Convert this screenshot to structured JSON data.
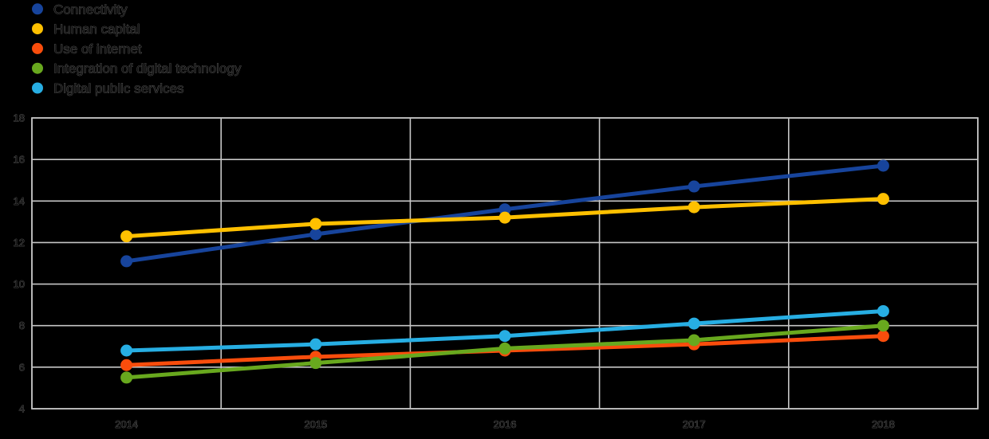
{
  "canvas": {
    "background": "#000000",
    "grid_color": "#C6C6C6",
    "border_color": "#BFBFBF",
    "text_fill": "#101010",
    "text_outline": "#7E7E7E"
  },
  "chart_data": {
    "type": "line",
    "title": "",
    "xlabel": "",
    "ylabel": "",
    "categories": [
      "2014",
      "2015",
      "2016",
      "2017",
      "2018"
    ],
    "series": [
      {
        "name": "Connectivity",
        "color": "#17449C",
        "values": [
          11.1,
          12.4,
          13.6,
          14.7,
          15.7
        ]
      },
      {
        "name": "Human capital",
        "color": "#FFC000",
        "values": [
          12.3,
          12.9,
          13.2,
          13.7,
          14.1
        ]
      },
      {
        "name": "Use of internet",
        "color": "#F94D0C",
        "values": [
          6.1,
          6.5,
          6.8,
          7.1,
          7.5
        ]
      },
      {
        "name": "Integration of digital technology",
        "color": "#68A81E",
        "values": [
          5.5,
          6.2,
          6.9,
          7.3,
          8.0
        ]
      },
      {
        "name": "Digital public services",
        "color": "#27AEE3",
        "values": [
          6.8,
          7.1,
          7.5,
          8.1,
          8.7
        ]
      }
    ],
    "ylim": [
      4,
      18
    ],
    "yticks": [
      4,
      6,
      8,
      10,
      12,
      14,
      16,
      18
    ],
    "xticks": [
      "2014",
      "2015",
      "2016",
      "2017",
      "2018"
    ],
    "grid": true,
    "legend_position": "top-left",
    "marker": "circle"
  }
}
